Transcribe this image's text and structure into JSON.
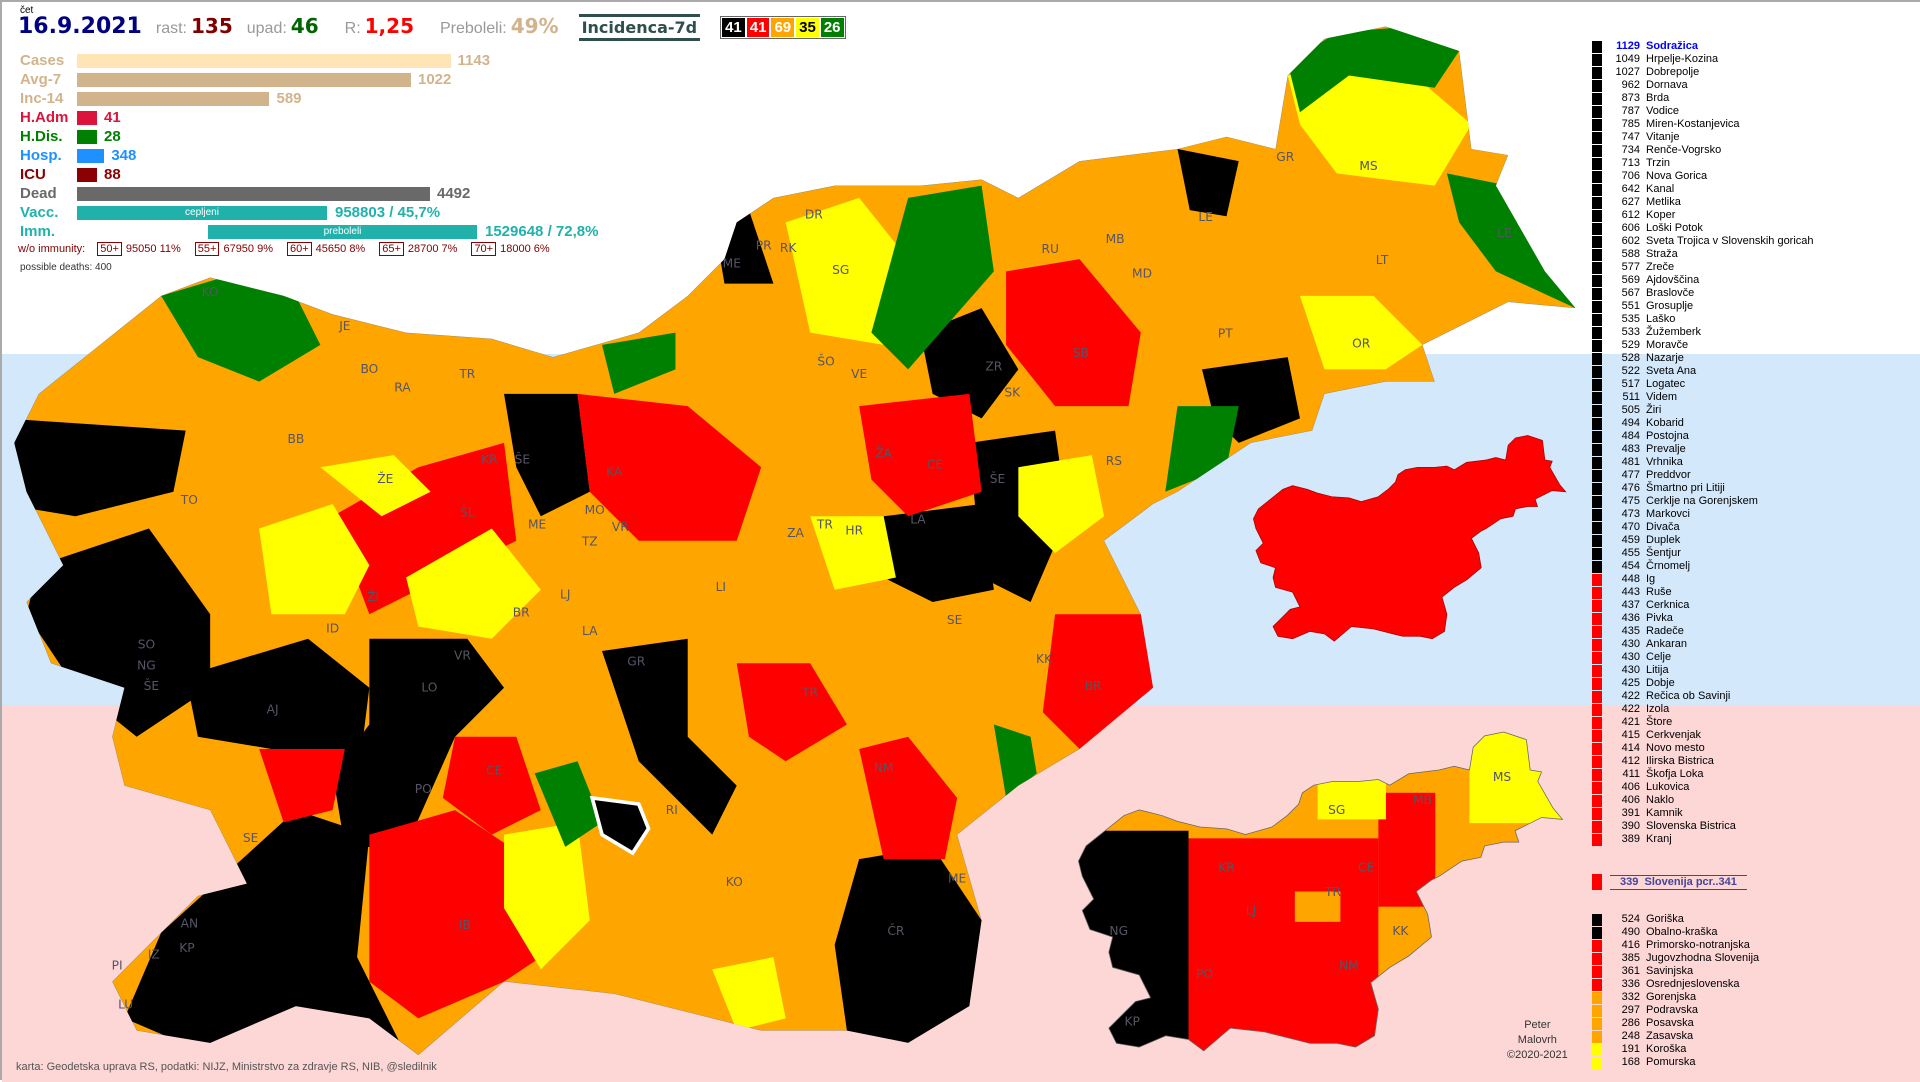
{
  "header": {
    "day": "čet",
    "date": "16.9.2021",
    "rast_label": "rast:",
    "rast": "135",
    "upad_label": "upad:",
    "upad": "46",
    "r_label": "R:",
    "r": "1,25",
    "preboleli_label": "Preboleli:",
    "preboleli": "49%",
    "mode": "Incidenca-7d",
    "counts": [
      {
        "v": "41",
        "bg": "#000000",
        "fg": "#ffffff"
      },
      {
        "v": "41",
        "bg": "#ff0000",
        "fg": "#ffffff"
      },
      {
        "v": "69",
        "bg": "#ffa500",
        "fg": "#ffffff"
      },
      {
        "v": "35",
        "bg": "#ffff00",
        "fg": "#000000"
      },
      {
        "v": "26",
        "bg": "#008000",
        "fg": "#ffffff"
      }
    ]
  },
  "stats": [
    {
      "label": "Cases",
      "value": "1143",
      "color": "#d2b48c",
      "bar": "#ffe4b5",
      "num": 1143
    },
    {
      "label": "Avg-7",
      "value": "1022",
      "color": "#d2b48c",
      "bar": "#d2b48c",
      "num": 1022
    },
    {
      "label": "Inc-14",
      "value": "589",
      "color": "#d2b48c",
      "bar": "#d2b48c",
      "num": 589
    },
    {
      "label": "H.Adm",
      "value": "41",
      "color": "#dc143c",
      "bar": "#dc143c",
      "num": 41
    },
    {
      "label": "H.Dis.",
      "value": "28",
      "color": "#008000",
      "bar": "#008000",
      "num": 28
    },
    {
      "label": "Hosp.",
      "value": "348",
      "color": "#1e90ff",
      "bar": "#1e90ff",
      "num": 348
    },
    {
      "label": "ICU",
      "value": "88",
      "color": "#8b0000",
      "bar": "#8b0000",
      "num": 88
    },
    {
      "label": "Dead",
      "value": "4492",
      "color": "#696969",
      "bar": "#696969",
      "num": 4492
    }
  ],
  "vacc": {
    "label": "Vacc.",
    "bar_text": "cepljeni",
    "value": "958803 / 45,7%",
    "percent": 45.7
  },
  "imm": {
    "label": "Imm.",
    "bar_text": "preboleli",
    "value": "1529648 / 72,8%",
    "percent": 72.8
  },
  "immunity": {
    "label": "w/o immunity:",
    "groups": [
      {
        "age": "50+",
        "text": "95050 11%"
      },
      {
        "age": "55+",
        "text": "67950 9%"
      },
      {
        "age": "60+",
        "text": "45650 8%"
      },
      {
        "age": "65+",
        "text": "28700 7%"
      },
      {
        "age": "70+",
        "text": "18000 6%"
      }
    ]
  },
  "possible_deaths": "possible deaths: 400",
  "colors": {
    "black": "#000000",
    "red": "#ff0000",
    "orange": "#ffa500",
    "yellow": "#ffff00",
    "green": "#008000"
  },
  "municipalities": [
    [
      "1129",
      "Sodražica",
      "black"
    ],
    [
      "1049",
      "Hrpelje-Kozina",
      "black"
    ],
    [
      "1027",
      "Dobrepolje",
      "black"
    ],
    [
      "962",
      "Dornava",
      "black"
    ],
    [
      "873",
      "Brda",
      "black"
    ],
    [
      "787",
      "Vodice",
      "black"
    ],
    [
      "785",
      "Miren-Kostanjevica",
      "black"
    ],
    [
      "747",
      "Vitanje",
      "black"
    ],
    [
      "734",
      "Renče-Vogrsko",
      "black"
    ],
    [
      "713",
      "Trzin",
      "black"
    ],
    [
      "706",
      "Nova Gorica",
      "black"
    ],
    [
      "642",
      "Kanal",
      "black"
    ],
    [
      "627",
      "Metlika",
      "black"
    ],
    [
      "612",
      "Koper",
      "black"
    ],
    [
      "606",
      "Loški Potok",
      "black"
    ],
    [
      "602",
      "Sveta Trojica v Slovenskih goricah",
      "black"
    ],
    [
      "588",
      "Straža",
      "black"
    ],
    [
      "577",
      "Zreče",
      "black"
    ],
    [
      "569",
      "Ajdovščina",
      "black"
    ],
    [
      "567",
      "Braslovče",
      "black"
    ],
    [
      "551",
      "Grosuplje",
      "black"
    ],
    [
      "535",
      "Laško",
      "black"
    ],
    [
      "533",
      "Žužemberk",
      "black"
    ],
    [
      "529",
      "Moravče",
      "black"
    ],
    [
      "528",
      "Nazarje",
      "black"
    ],
    [
      "522",
      "Sveta Ana",
      "black"
    ],
    [
      "517",
      "Logatec",
      "black"
    ],
    [
      "511",
      "Videm",
      "black"
    ],
    [
      "505",
      "Žiri",
      "black"
    ],
    [
      "494",
      "Kobarid",
      "black"
    ],
    [
      "484",
      "Postojna",
      "black"
    ],
    [
      "483",
      "Prevalje",
      "black"
    ],
    [
      "481",
      "Vrhnika",
      "black"
    ],
    [
      "477",
      "Preddvor",
      "black"
    ],
    [
      "476",
      "Šmartno pri Litiji",
      "black"
    ],
    [
      "475",
      "Cerklje na Gorenjskem",
      "black"
    ],
    [
      "473",
      "Markovci",
      "black"
    ],
    [
      "470",
      "Divača",
      "black"
    ],
    [
      "459",
      "Duplek",
      "black"
    ],
    [
      "455",
      "Šentjur",
      "black"
    ],
    [
      "454",
      "Črnomelj",
      "black"
    ],
    [
      "448",
      "Ig",
      "red"
    ],
    [
      "443",
      "Ruše",
      "red"
    ],
    [
      "437",
      "Cerknica",
      "red"
    ],
    [
      "436",
      "Pivka",
      "red"
    ],
    [
      "435",
      "Radeče",
      "red"
    ],
    [
      "430",
      "Ankaran",
      "red"
    ],
    [
      "430",
      "Celje",
      "red"
    ],
    [
      "430",
      "Litija",
      "red"
    ],
    [
      "425",
      "Dobje",
      "red"
    ],
    [
      "422",
      "Rečica ob Savinji",
      "red"
    ],
    [
      "422",
      "Izola",
      "red"
    ],
    [
      "421",
      "Štore",
      "red"
    ],
    [
      "415",
      "Cerkvenjak",
      "red"
    ],
    [
      "414",
      "Novo mesto",
      "red"
    ],
    [
      "412",
      "Ilirska Bistrica",
      "red"
    ],
    [
      "411",
      "Škofja Loka",
      "red"
    ],
    [
      "406",
      "Lukovica",
      "red"
    ],
    [
      "406",
      "Naklo",
      "red"
    ],
    [
      "391",
      "Kamnik",
      "red"
    ],
    [
      "390",
      "Slovenska Bistrica",
      "red"
    ],
    [
      "389",
      "Kranj",
      "red"
    ]
  ],
  "slovenia": {
    "value": "339",
    "label": "Slovenija  pcr..341"
  },
  "regions": [
    [
      "524",
      "Goriška",
      "black"
    ],
    [
      "490",
      "Obalno-kraška",
      "black"
    ],
    [
      "416",
      "Primorsko-notranjska",
      "red"
    ],
    [
      "385",
      "Jugovzhodna Slovenija",
      "red"
    ],
    [
      "361",
      "Savinjska",
      "red"
    ],
    [
      "336",
      "Osrednjeslovenska",
      "red"
    ],
    [
      "332",
      "Gorenjska",
      "orange"
    ],
    [
      "297",
      "Podravska",
      "orange"
    ],
    [
      "286",
      "Posavska",
      "orange"
    ],
    [
      "248",
      "Zasavska",
      "orange"
    ],
    [
      "191",
      "Koroška",
      "yellow"
    ],
    [
      "168",
      "Pomurska",
      "yellow"
    ]
  ],
  "map_labels": [
    "KO",
    "JE",
    "BO",
    "TR",
    "RA",
    "BB",
    "KR",
    "ŠE",
    "TO",
    "ŽE",
    "ŠL",
    "ME",
    "MO",
    "VR",
    "TZ",
    "KA",
    "ŠO",
    "VE",
    "SG",
    "DR",
    "PR",
    "RK",
    "ME",
    "RU",
    "MB",
    "MD",
    "LE",
    "GR",
    "MS",
    "LT",
    "LE",
    "PT",
    "OR",
    "SB",
    "ZR",
    "SK",
    "ŽA",
    "CE",
    "ŠE",
    "RS",
    "LA",
    "ZA",
    "TR",
    "HR",
    "LI",
    "ŽI",
    "LJ",
    "BR",
    "LA",
    "ID",
    "SO",
    "NG",
    "ŠE",
    "AJ",
    "LO",
    "VR",
    "GR",
    "SE",
    "KK",
    "BR",
    "TR",
    "NM",
    "CE",
    "PO",
    "RI",
    "SE",
    "IB",
    "KO",
    "ME",
    "ČR",
    "AN",
    "IZ",
    "KP",
    "PI",
    "LU"
  ],
  "region_labels": [
    "SG",
    "MB",
    "MS",
    "KR",
    "CE",
    "TR",
    "LJ",
    "KK",
    "NG",
    "PO",
    "NM",
    "KP"
  ],
  "footer": {
    "source": "karta: Geodetska uprava RS,  podatki: NIJZ, Ministrstvo za zdravje RS, NIB, @sledilnik",
    "author1": "Peter",
    "author2": "Malovrh",
    "copyright": "©2020-2021"
  }
}
